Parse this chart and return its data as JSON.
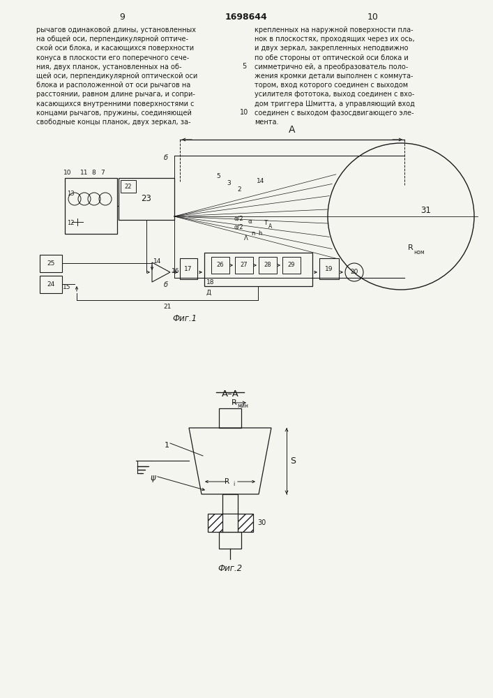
{
  "bg_color": "#f5f5f0",
  "line_color": "#1a1a1a",
  "text_color": "#1a1a1a",
  "page_num_left": "9",
  "page_num_center": "1698644",
  "page_num_right": "10",
  "col1_lines": [
    "рычагов одинаковой длины, установленных",
    "на общей оси, перпендикулярной оптиче-",
    "ской оси блока, и касающихся поверхности",
    "конуса в плоскости его поперечного сече-",
    "ния, двух планок, установленных на об-",
    "щей оси, перпендикулярной оптической оси",
    "блока и расположенной от оси рычагов на",
    "расстоянии, равном длине рычага, и сопри-",
    "касающихся внутренними поверхностями с",
    "концами рычагов, пружины, соединяющей",
    "свободные концы планок, двух зеркал, за-"
  ],
  "col2_lines": [
    "крепленных на наружной поверхности пла-",
    "нок в плоскостях, проходящих через их ось,",
    "и двух зеркал, закрепленных неподвижно",
    "по обе стороны от оптической оси блока и",
    "симметрично ей, а преобразователь поло-",
    "жения кромки детали выполнен с коммута-",
    "тором, вход которого соединен с выходом",
    "усилителя фототока, выход соединен с вхо-",
    "дом триггера Шмитта, а управляющий вход",
    "соединен с выходом фазосдвигающего эле-",
    "мента."
  ],
  "line_num_5_row": 4,
  "line_num_10_row": 9
}
